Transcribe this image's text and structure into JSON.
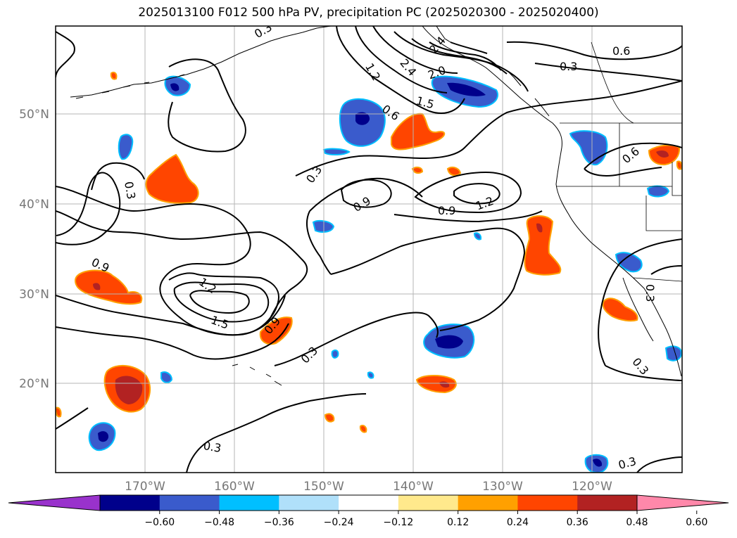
{
  "title": "2025013100 F012 500 hPa PV, precipitation PC (2025020300 - 2025020400)",
  "lat_labels": [
    "50°N",
    "40°N",
    "30°N",
    "20°N"
  ],
  "lon_labels": [
    "170°W",
    "160°W",
    "150°W",
    "140°W",
    "130°W",
    "120°W"
  ],
  "contour_labels": [
    "0.3",
    "0.6",
    "0.9",
    "1.2",
    "1.5",
    "2.0",
    "2.4"
  ],
  "colorbar": {
    "ticks": [
      "−0.60",
      "−0.48",
      "−0.36",
      "−0.24",
      "−0.12",
      "0.12",
      "0.24",
      "0.36",
      "0.48",
      "0.60"
    ],
    "colors": [
      "#9932cc",
      "#00008b",
      "#3a5bcc",
      "#00bfff",
      "#b0e0fa",
      "#ffffff",
      "#ffe98c",
      "#ffa000",
      "#ff4500",
      "#b22222",
      "#ff88aa"
    ]
  }
}
